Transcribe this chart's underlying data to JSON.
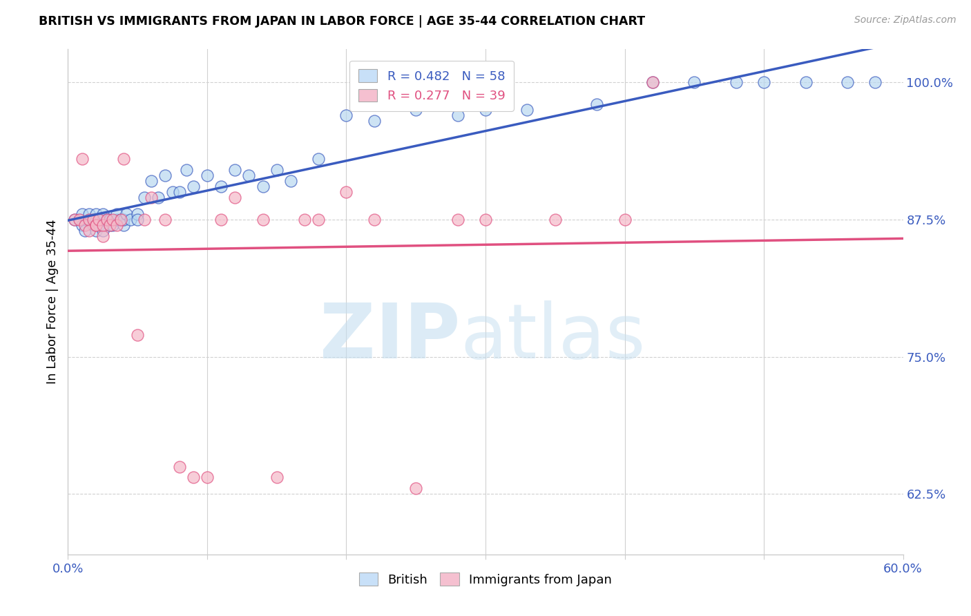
{
  "title": "BRITISH VS IMMIGRANTS FROM JAPAN IN LABOR FORCE | AGE 35-44 CORRELATION CHART",
  "source": "Source: ZipAtlas.com",
  "ylabel": "In Labor Force | Age 35-44",
  "xlim": [
    0.0,
    0.6
  ],
  "ylim": [
    0.57,
    1.03
  ],
  "x_ticks": [
    0.0,
    0.1,
    0.2,
    0.3,
    0.4,
    0.5,
    0.6
  ],
  "x_tick_labels": [
    "0.0%",
    "",
    "",
    "",
    "",
    "",
    "60.0%"
  ],
  "y_ticks_right": [
    0.625,
    0.75,
    0.875,
    1.0
  ],
  "y_tick_labels_right": [
    "62.5%",
    "75.0%",
    "87.5%",
    "100.0%"
  ],
  "british_R": 0.482,
  "british_N": 58,
  "japan_R": 0.277,
  "japan_N": 39,
  "british_color": "#b8d8f0",
  "japan_color": "#f5b8c8",
  "british_line_color": "#3a5bbf",
  "japan_line_color": "#e05080",
  "legend_box_color_british": "#c8e0f8",
  "legend_box_color_japan": "#f5c0d0",
  "british_x": [
    0.005,
    0.008,
    0.01,
    0.01,
    0.012,
    0.015,
    0.015,
    0.018,
    0.02,
    0.02,
    0.02,
    0.022,
    0.025,
    0.025,
    0.025,
    0.028,
    0.03,
    0.03,
    0.032,
    0.035,
    0.035,
    0.038,
    0.04,
    0.04,
    0.042,
    0.045,
    0.05,
    0.05,
    0.055,
    0.06,
    0.065,
    0.07,
    0.075,
    0.08,
    0.085,
    0.09,
    0.1,
    0.11,
    0.12,
    0.13,
    0.14,
    0.15,
    0.16,
    0.18,
    0.2,
    0.22,
    0.25,
    0.28,
    0.3,
    0.33,
    0.38,
    0.42,
    0.45,
    0.48,
    0.5,
    0.53,
    0.56,
    0.58
  ],
  "british_y": [
    0.875,
    0.875,
    0.87,
    0.88,
    0.865,
    0.875,
    0.88,
    0.87,
    0.865,
    0.875,
    0.88,
    0.87,
    0.865,
    0.875,
    0.88,
    0.875,
    0.87,
    0.875,
    0.87,
    0.875,
    0.88,
    0.875,
    0.87,
    0.875,
    0.88,
    0.875,
    0.88,
    0.875,
    0.895,
    0.91,
    0.895,
    0.915,
    0.9,
    0.9,
    0.92,
    0.905,
    0.915,
    0.905,
    0.92,
    0.915,
    0.905,
    0.92,
    0.91,
    0.93,
    0.97,
    0.965,
    0.975,
    0.97,
    0.975,
    0.975,
    0.98,
    1.0,
    1.0,
    1.0,
    1.0,
    1.0,
    1.0,
    1.0
  ],
  "japan_x": [
    0.005,
    0.008,
    0.01,
    0.012,
    0.015,
    0.015,
    0.018,
    0.02,
    0.02,
    0.022,
    0.025,
    0.025,
    0.028,
    0.03,
    0.032,
    0.035,
    0.038,
    0.04,
    0.05,
    0.055,
    0.06,
    0.07,
    0.08,
    0.09,
    0.1,
    0.11,
    0.12,
    0.14,
    0.15,
    0.17,
    0.18,
    0.2,
    0.22,
    0.25,
    0.28,
    0.3,
    0.35,
    0.4,
    0.42
  ],
  "japan_y": [
    0.875,
    0.875,
    0.93,
    0.87,
    0.875,
    0.865,
    0.875,
    0.87,
    0.87,
    0.875,
    0.86,
    0.87,
    0.875,
    0.87,
    0.875,
    0.87,
    0.875,
    0.93,
    0.77,
    0.875,
    0.895,
    0.875,
    0.65,
    0.64,
    0.64,
    0.875,
    0.895,
    0.875,
    0.64,
    0.875,
    0.875,
    0.9,
    0.875,
    0.63,
    0.875,
    0.875,
    0.875,
    0.875,
    1.0
  ]
}
